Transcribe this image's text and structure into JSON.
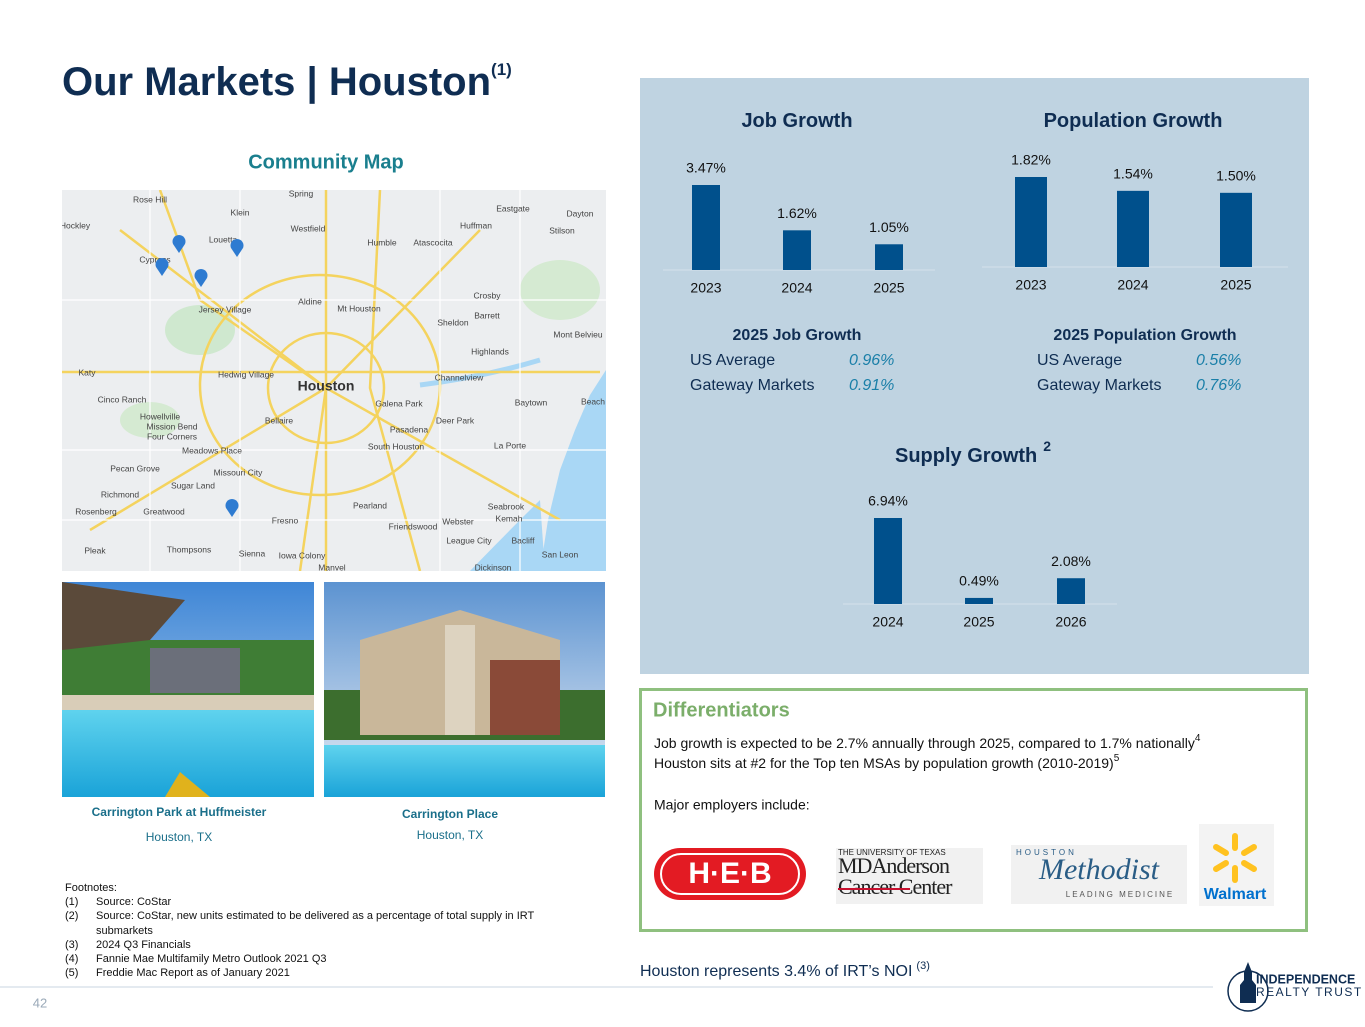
{
  "header": {
    "title": "Our Markets | Houston",
    "title_note": "(1)"
  },
  "map": {
    "title": "Community Map",
    "labels": [
      "Rose Hill",
      "Spring",
      "Klein",
      "Eastgate",
      "Dayton",
      "Hockley",
      "Westfield",
      "Huffman",
      "Stilson",
      "Louetta",
      "Humble",
      "Atascocita",
      "Cypress",
      "Crosby",
      "Aldine",
      "Mt Houston",
      "Jersey Village",
      "Barrett",
      "Sheldon",
      "Mont Belvieu",
      "Highlands",
      "Katy",
      "Hedwig Village",
      "Houston",
      "Channelview",
      "Cinco Ranch",
      "Galena Park",
      "Baytown",
      "Beach",
      "Howellville",
      "Bellaire",
      "Deer Park",
      "Mission Bend",
      "Four Corners",
      "Pasadena",
      "Meadows Place",
      "South Houston",
      "La Porte",
      "Pecan Grove",
      "Missouri City",
      "Sugar Land",
      "Richmond",
      "Pearland",
      "Seabrook",
      "Kemah",
      "Rosenberg",
      "Greatwood",
      "Fresno",
      "Friendswood",
      "Webster",
      "League City",
      "Bacliff",
      "Pleak",
      "Thompsons",
      "Sienna",
      "Iowa Colony",
      "San Leon",
      "Manvel",
      "Dickinson"
    ]
  },
  "properties": [
    {
      "name": "Carrington Park at Huffmeister",
      "location": "Houston, TX"
    },
    {
      "name": "Carrington Place",
      "location": "Houston, TX"
    }
  ],
  "chart_data": [
    {
      "type": "bar",
      "title": "Job Growth",
      "categories": [
        "2023",
        "2024",
        "2025"
      ],
      "values": [
        3.47,
        1.62,
        1.05
      ],
      "value_labels": [
        "3.47%",
        "1.62%",
        "1.05%"
      ],
      "color": "#00508c"
    },
    {
      "type": "bar",
      "title": "Population Growth",
      "categories": [
        "2023",
        "2024",
        "2025"
      ],
      "values": [
        1.82,
        1.54,
        1.5
      ],
      "value_labels": [
        "1.82%",
        "1.54%",
        "1.50%"
      ],
      "color": "#00508c"
    },
    {
      "type": "bar",
      "title": "Supply Growth",
      "title_note": "2",
      "categories": [
        "2024",
        "2025",
        "2026"
      ],
      "values": [
        6.94,
        0.49,
        2.08
      ],
      "value_labels": [
        "6.94%",
        "0.49%",
        "2.08%"
      ],
      "color": "#00508c"
    }
  ],
  "tables": [
    {
      "title": "2025 Job Growth",
      "rows": [
        [
          "US Average",
          "0.96%"
        ],
        [
          "Gateway Markets",
          "0.91%"
        ]
      ]
    },
    {
      "title": "2025 Population Growth",
      "rows": [
        [
          "US Average",
          "0.56%"
        ],
        [
          "Gateway Markets",
          "0.76%"
        ]
      ]
    }
  ],
  "differentiators": {
    "title": "Differentiators",
    "lines": [
      {
        "text": "Job growth is expected to be 2.7% annually through 2025, compared to 1.7% nationally",
        "note": "4"
      },
      {
        "text": "Houston sits at #2 for the Top ten MSAs by population growth (2010-2019)",
        "note": "5"
      }
    ],
    "employers_intro": "Major employers include:"
  },
  "logos": {
    "heb": "H·E·B",
    "md_anderson": [
      "THE UNIVERSITY OF TEXAS",
      "MDAnderson",
      "Cancer Center"
    ],
    "methodist": [
      "HOUSTON",
      "Methodist",
      "LEADING MEDICINE"
    ],
    "walmart": "Walmart"
  },
  "noi_note": {
    "text": "Houston represents 3.4% of IRT’s NOI",
    "note": "(3)"
  },
  "footnotes": {
    "title": "Footnotes:",
    "items": [
      {
        "num": "(1)",
        "text": "Source: CoStar"
      },
      {
        "num": "(2)",
        "text": "Source: CoStar, new units estimated to be delivered as a percentage of total supply in IRT submarkets"
      },
      {
        "num": "(3)",
        "text": "2024 Q3 Financials"
      },
      {
        "num": "(4)",
        "text": "Fannie Mae Multifamily Metro Outlook 2021 Q3"
      },
      {
        "num": "(5)",
        "text": "Freddie Mac Report as of January 2021"
      }
    ]
  },
  "page_number": "42",
  "brand": [
    "INDEPENDENCE",
    "REALTY TRUST"
  ]
}
